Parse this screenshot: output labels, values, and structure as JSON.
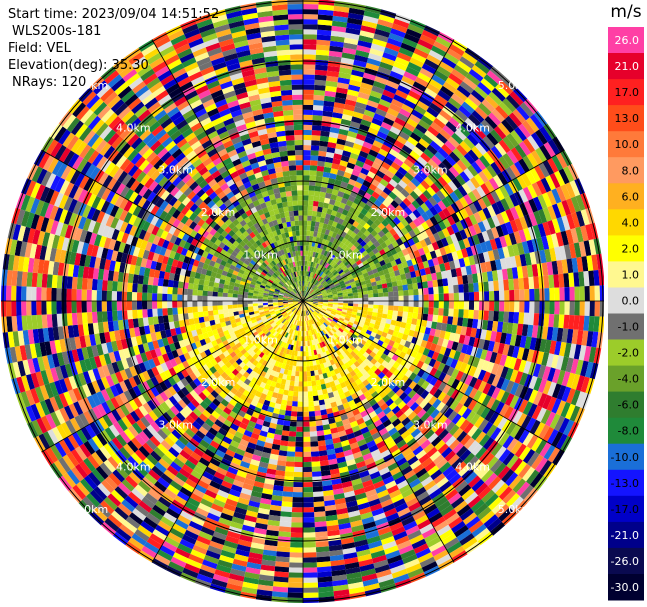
{
  "header": {
    "start_time": "Start time: 2023/09/04 14:51:52",
    "instrument": "WLS200s-181",
    "field": "Field: VEL",
    "elevation": "Elevation(deg): 35.30",
    "nrays": "NRays: 120"
  },
  "ppi": {
    "range_rings": [
      {
        "label": "1.0km"
      },
      {
        "label": "2.0km"
      },
      {
        "label": "3.0km"
      },
      {
        "label": "4.0km"
      },
      {
        "label": "5.0km"
      }
    ],
    "colors": {
      "ring": "#000000",
      "spoke": "#000000",
      "background": "#ffffff"
    }
  },
  "colorbar": {
    "unit": "m/s",
    "ticks": [
      "26.0",
      "21.0",
      "17.0",
      "13.0",
      "10.0",
      "8.0",
      "6.0",
      "4.0",
      "2.0",
      "1.0",
      "0.0",
      "-1.0",
      "-2.0",
      "-4.0",
      "-6.0",
      "-8.0",
      "-10.0",
      "-13.0",
      "-17.0",
      "-21.0",
      "-26.0",
      "-30.0"
    ],
    "colors": [
      "#ff3fa5",
      "#e6002b",
      "#ff2020",
      "#ff4d1a",
      "#ff7a3a",
      "#ff9a60",
      "#ffb020",
      "#ffd800",
      "#ffff00",
      "#fff890",
      "#dddddd",
      "#707070",
      "#9ccc2a",
      "#6aa12a",
      "#2f7d2f",
      "#1f8a3a",
      "#1a6fd8",
      "#1414ff",
      "#0000c8",
      "#00008a",
      "#0a0a50",
      "#000030"
    ]
  }
}
